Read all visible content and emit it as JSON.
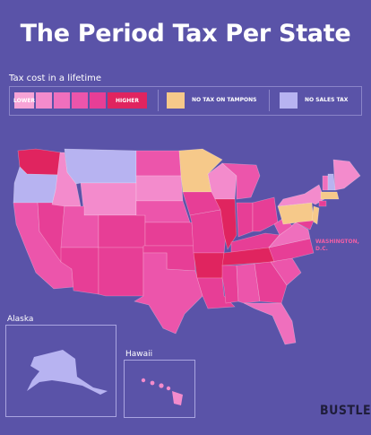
{
  "title": "The Period Tax Per State",
  "legend": {
    "heading": "Tax cost in a lifetime",
    "lower_label": "LOWER",
    "higher_label": "HIGHER",
    "no_tampon_tax_label": "NO TAX ON TAMPONS",
    "no_sales_tax_label": "NO SALES TAX",
    "scale_colors": [
      "#f7a3d6",
      "#f38bcc",
      "#ef6fbd",
      "#ec55ab",
      "#e73e96",
      "#e0245f"
    ],
    "no_tampon_tax_color": "#f6c98a",
    "no_sales_tax_color": "#b7b3f1"
  },
  "annotations": {
    "dc_label": "WASHINGTON, D.C."
  },
  "insets": {
    "alaska_label": "Alaska",
    "hawaii_label": "Hawaii"
  },
  "brand": "BUSTLE",
  "colors": {
    "background": "#5a53a8",
    "land_default": "#ec55ab"
  }
}
